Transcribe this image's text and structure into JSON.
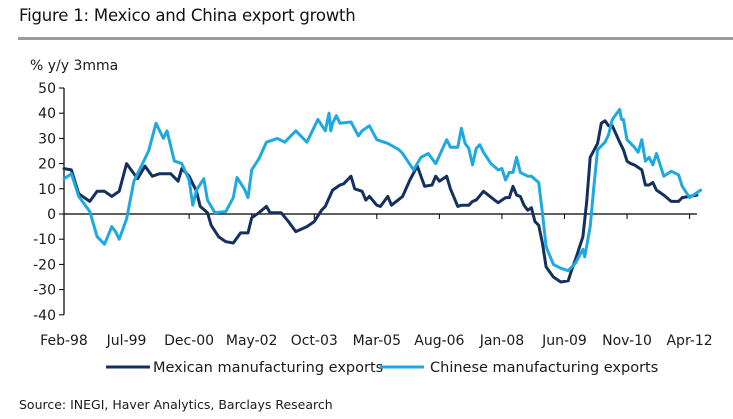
{
  "figure": {
    "title": "Figure 1: Mexico and China export growth",
    "source": "Source: INEGI, Haver Analytics, Barclays Research"
  },
  "chart_data": {
    "type": "line",
    "title": "Figure 1: Mexico and China export growth",
    "ylabel": "% y/y 3mma",
    "xlabel": "",
    "ylim": [
      -40,
      50
    ],
    "yticks": [
      50,
      40,
      30,
      20,
      10,
      0,
      -10,
      -20,
      -30,
      -40
    ],
    "x_unit": "months since Feb-98",
    "xlim": [
      0,
      172
    ],
    "xticks": [
      {
        "m": 0,
        "label": "Feb-98"
      },
      {
        "m": 17,
        "label": "Jul-99"
      },
      {
        "m": 34,
        "label": "Dec-00"
      },
      {
        "m": 51,
        "label": "May-02"
      },
      {
        "m": 68,
        "label": "Oct-03"
      },
      {
        "m": 85,
        "label": "Mar-05"
      },
      {
        "m": 102,
        "label": "Aug-06"
      },
      {
        "m": 119,
        "label": "Jan-08"
      },
      {
        "m": 136,
        "label": "Jun-09"
      },
      {
        "m": 153,
        "label": "Nov-10"
      },
      {
        "m": 170,
        "label": "Apr-12"
      }
    ],
    "grid": false,
    "legend_position": "bottom",
    "series": [
      {
        "name": "Mexican manufacturing exports",
        "color": "#13305e",
        "points": [
          [
            0,
            18
          ],
          [
            2,
            17.5
          ],
          [
            4,
            8
          ],
          [
            7,
            5
          ],
          [
            9,
            9
          ],
          [
            11,
            9
          ],
          [
            13,
            7
          ],
          [
            15,
            9
          ],
          [
            17,
            20
          ],
          [
            20,
            14
          ],
          [
            22,
            19
          ],
          [
            24,
            15
          ],
          [
            26,
            16
          ],
          [
            29,
            16
          ],
          [
            31,
            13
          ],
          [
            32,
            18
          ],
          [
            34,
            15
          ],
          [
            36,
            9
          ],
          [
            37,
            3
          ],
          [
            39,
            0.5
          ],
          [
            40,
            -4.5
          ],
          [
            42,
            -9
          ],
          [
            44,
            -11
          ],
          [
            46,
            -11.5
          ],
          [
            48,
            -7.5
          ],
          [
            50,
            -7.5
          ],
          [
            51,
            -1.5
          ],
          [
            53,
            0.5
          ],
          [
            55,
            3
          ],
          [
            56,
            0.5
          ],
          [
            59,
            0.5
          ],
          [
            61,
            -3
          ],
          [
            63,
            -7
          ],
          [
            66,
            -5
          ],
          [
            68,
            -3
          ],
          [
            70,
            1.5
          ],
          [
            71,
            3
          ],
          [
            73,
            9.5
          ],
          [
            75,
            11.5
          ],
          [
            76,
            12
          ],
          [
            78,
            15
          ],
          [
            79,
            10
          ],
          [
            81,
            9
          ],
          [
            82,
            5.5
          ],
          [
            83,
            7
          ],
          [
            85,
            3.5
          ],
          [
            86,
            3
          ],
          [
            88,
            7
          ],
          [
            89,
            3.5
          ],
          [
            92,
            7
          ],
          [
            94,
            13.5
          ],
          [
            96,
            19
          ],
          [
            98,
            11
          ],
          [
            100,
            11.5
          ],
          [
            101,
            15
          ],
          [
            102,
            13
          ],
          [
            104,
            15
          ],
          [
            105,
            10
          ],
          [
            107,
            3
          ],
          [
            108,
            3.5
          ],
          [
            110,
            3.5
          ],
          [
            111,
            5
          ],
          [
            112,
            5.5
          ],
          [
            114,
            9
          ],
          [
            117,
            5.5
          ],
          [
            118,
            4.5
          ],
          [
            120,
            6.5
          ],
          [
            121,
            6.5
          ],
          [
            122,
            11
          ],
          [
            123,
            7.5
          ],
          [
            124,
            7
          ],
          [
            125,
            3.5
          ],
          [
            126,
            1.5
          ],
          [
            127,
            2.5
          ],
          [
            128,
            -3
          ],
          [
            129,
            -4.5
          ],
          [
            130,
            -11.5
          ],
          [
            131,
            -21
          ],
          [
            133,
            -25
          ],
          [
            135,
            -27
          ],
          [
            137,
            -26.5
          ],
          [
            138,
            -22
          ],
          [
            139,
            -18
          ],
          [
            141,
            -9
          ],
          [
            142,
            4.5
          ],
          [
            143,
            22.5
          ],
          [
            145,
            28
          ],
          [
            146,
            36
          ],
          [
            147,
            37
          ],
          [
            148,
            35
          ],
          [
            149,
            35
          ],
          [
            151,
            28.5
          ],
          [
            152,
            25.5
          ],
          [
            153,
            21
          ],
          [
            154,
            20
          ],
          [
            155,
            19.5
          ],
          [
            157,
            17.5
          ],
          [
            158,
            11.5
          ],
          [
            159,
            11.5
          ],
          [
            160,
            12.5
          ],
          [
            161,
            9.5
          ],
          [
            163,
            7.5
          ],
          [
            165,
            5
          ],
          [
            167,
            5
          ],
          [
            168,
            6.5
          ],
          [
            170,
            7
          ],
          [
            172,
            7.5
          ]
        ]
      },
      {
        "name": "Chinese manufacturing exports",
        "color": "#1fa9e1",
        "points": [
          [
            0,
            14
          ],
          [
            2,
            16
          ],
          [
            4,
            7
          ],
          [
            7,
            1
          ],
          [
            9,
            -9
          ],
          [
            11,
            -12
          ],
          [
            13,
            -5
          ],
          [
            14,
            -7
          ],
          [
            15,
            -10
          ],
          [
            17,
            -2
          ],
          [
            19,
            13
          ],
          [
            21,
            19
          ],
          [
            23,
            25
          ],
          [
            25,
            36
          ],
          [
            27,
            30
          ],
          [
            28,
            33
          ],
          [
            30,
            21
          ],
          [
            31,
            20.5
          ],
          [
            32,
            20
          ],
          [
            34,
            13.5
          ],
          [
            35,
            3.5
          ],
          [
            36,
            9.5
          ],
          [
            38,
            14
          ],
          [
            39,
            5.5
          ],
          [
            41,
            0.5
          ],
          [
            44,
            1
          ],
          [
            46,
            6.5
          ],
          [
            47,
            14.5
          ],
          [
            49,
            10
          ],
          [
            50,
            6.5
          ],
          [
            51,
            17.5
          ],
          [
            53,
            22
          ],
          [
            55,
            28.5
          ],
          [
            58,
            30
          ],
          [
            60,
            28.5
          ],
          [
            63,
            33
          ],
          [
            66,
            28.5
          ],
          [
            69,
            37.5
          ],
          [
            71,
            33
          ],
          [
            72,
            40
          ],
          [
            72.5,
            33
          ],
          [
            73,
            36
          ],
          [
            74,
            39
          ],
          [
            75,
            36
          ],
          [
            78,
            36.5
          ],
          [
            80,
            31
          ],
          [
            81,
            33
          ],
          [
            83,
            35
          ],
          [
            85,
            29.5
          ],
          [
            88,
            28
          ],
          [
            91,
            25.5
          ],
          [
            92,
            24
          ],
          [
            95,
            17.5
          ],
          [
            97,
            22.5
          ],
          [
            99,
            24
          ],
          [
            101,
            20
          ],
          [
            104,
            29.5
          ],
          [
            105,
            26.5
          ],
          [
            107,
            26.5
          ],
          [
            108,
            34
          ],
          [
            109,
            28
          ],
          [
            110,
            26
          ],
          [
            111,
            19.5
          ],
          [
            112,
            26
          ],
          [
            113,
            27.5
          ],
          [
            114,
            24.5
          ],
          [
            116,
            20
          ],
          [
            118,
            17.5
          ],
          [
            119,
            18
          ],
          [
            120,
            13.5
          ],
          [
            121,
            16.5
          ],
          [
            122,
            16.5
          ],
          [
            123,
            22.5
          ],
          [
            124,
            16.5
          ],
          [
            126,
            15
          ],
          [
            127,
            15
          ],
          [
            129,
            12.5
          ],
          [
            130,
            0.5
          ],
          [
            131,
            -13
          ],
          [
            133,
            -20
          ],
          [
            135,
            -21.5
          ],
          [
            137,
            -22.5
          ],
          [
            139,
            -19.5
          ],
          [
            141,
            -14
          ],
          [
            141.5,
            -17
          ],
          [
            143,
            -5
          ],
          [
            144,
            11
          ],
          [
            145,
            25.5
          ],
          [
            147,
            28.5
          ],
          [
            148,
            31.5
          ],
          [
            149,
            37.5
          ],
          [
            151,
            41.5
          ],
          [
            152,
            37.5
          ],
          [
            151.5,
            37.5
          ],
          [
            153,
            29.5
          ],
          [
            155,
            26.5
          ],
          [
            156,
            24.5
          ],
          [
            157,
            29.5
          ],
          [
            158,
            21
          ],
          [
            159,
            22.5
          ],
          [
            160,
            19.5
          ],
          [
            161,
            24
          ],
          [
            163,
            15
          ],
          [
            165,
            17
          ],
          [
            167,
            15.5
          ],
          [
            168,
            11
          ],
          [
            170,
            6.5
          ],
          [
            171,
            7.5
          ],
          [
            172,
            8.5
          ],
          [
            173,
            9.5
          ]
        ]
      }
    ]
  }
}
